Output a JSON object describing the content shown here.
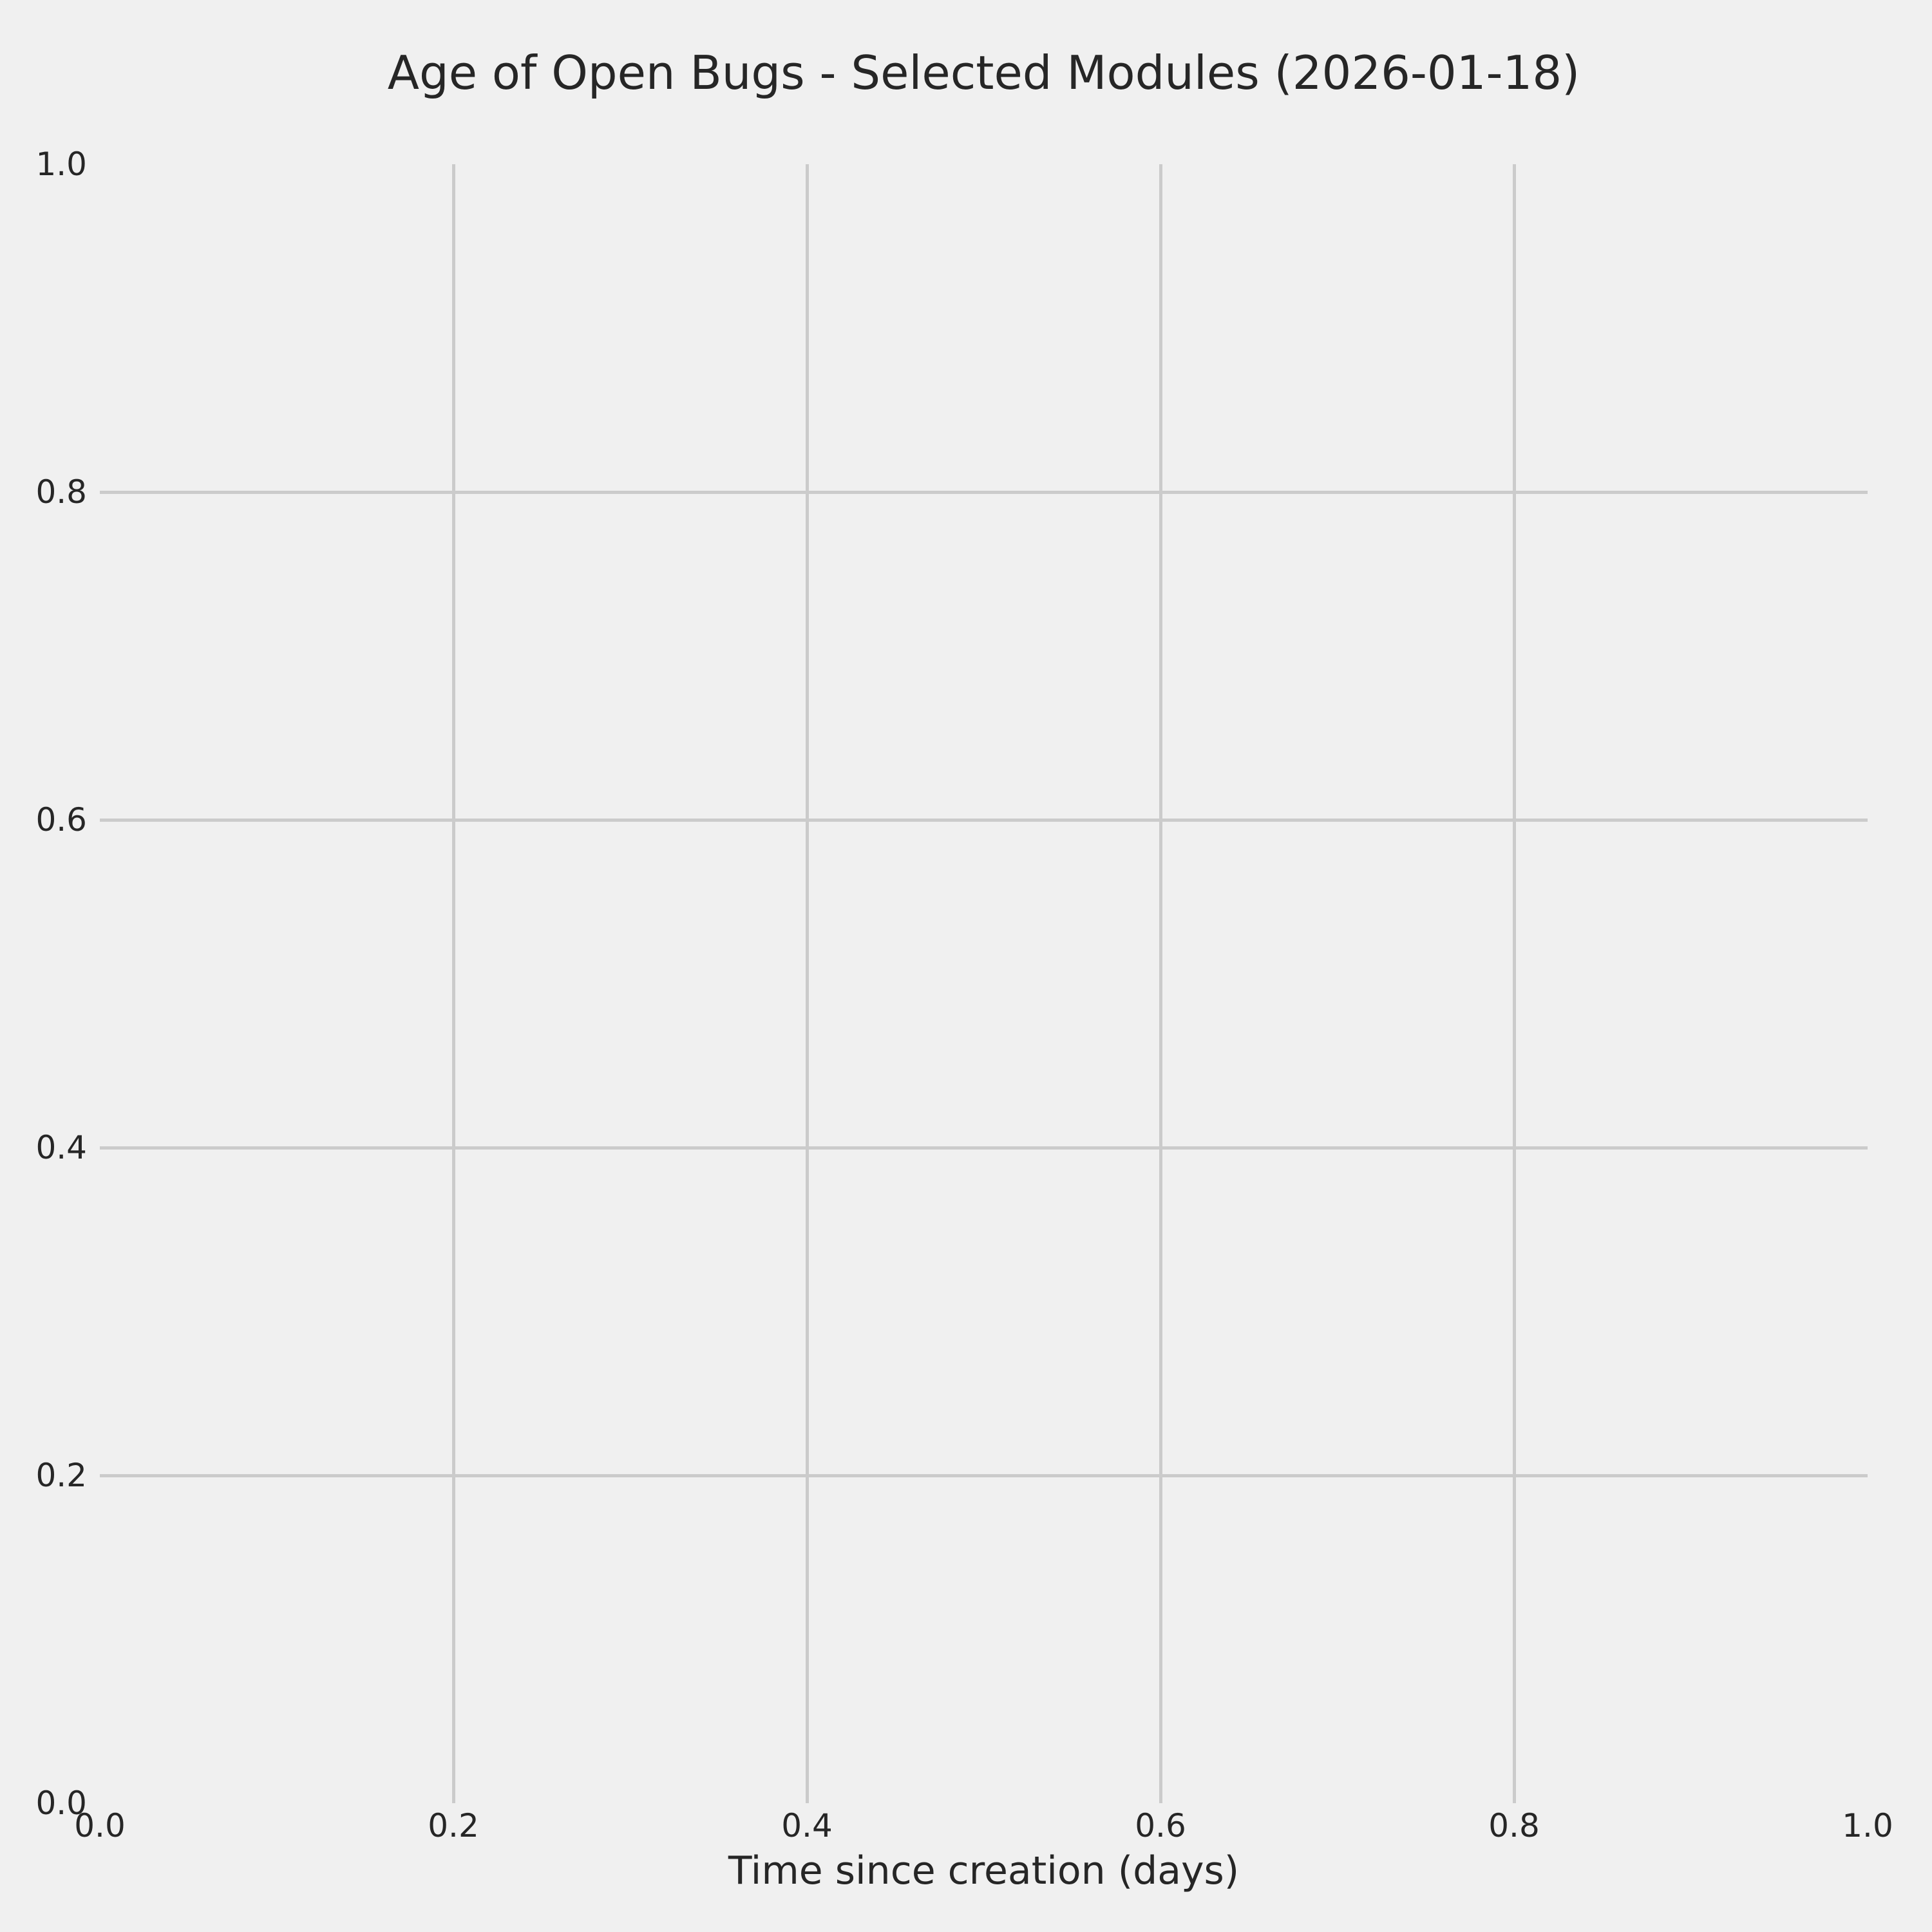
{
  "chart_data": {
    "type": "line",
    "title": "Age of Open Bugs - Selected Modules (2026-01-18)",
    "xlabel": "Time since creation (days)",
    "ylabel": "",
    "xlim": [
      0.0,
      1.0
    ],
    "ylim": [
      0.0,
      1.0
    ],
    "xticks": [
      0.0,
      0.2,
      0.4,
      0.6,
      0.8,
      1.0
    ],
    "xtick_labels": [
      "0.0",
      "0.2",
      "0.4",
      "0.6",
      "0.8",
      "1.0"
    ],
    "yticks": [
      0.0,
      0.2,
      0.4,
      0.6,
      0.8,
      1.0
    ],
    "ytick_labels": [
      "0.0",
      "0.2",
      "0.4",
      "0.6",
      "0.8",
      "1.0"
    ],
    "grid": "on",
    "gridlines_at_interior_ticks_only": true,
    "legend": "none",
    "series": []
  },
  "style": {
    "background_color": "#f0f0f0",
    "grid_color": "#cbcbcb",
    "text_color": "#262626"
  }
}
